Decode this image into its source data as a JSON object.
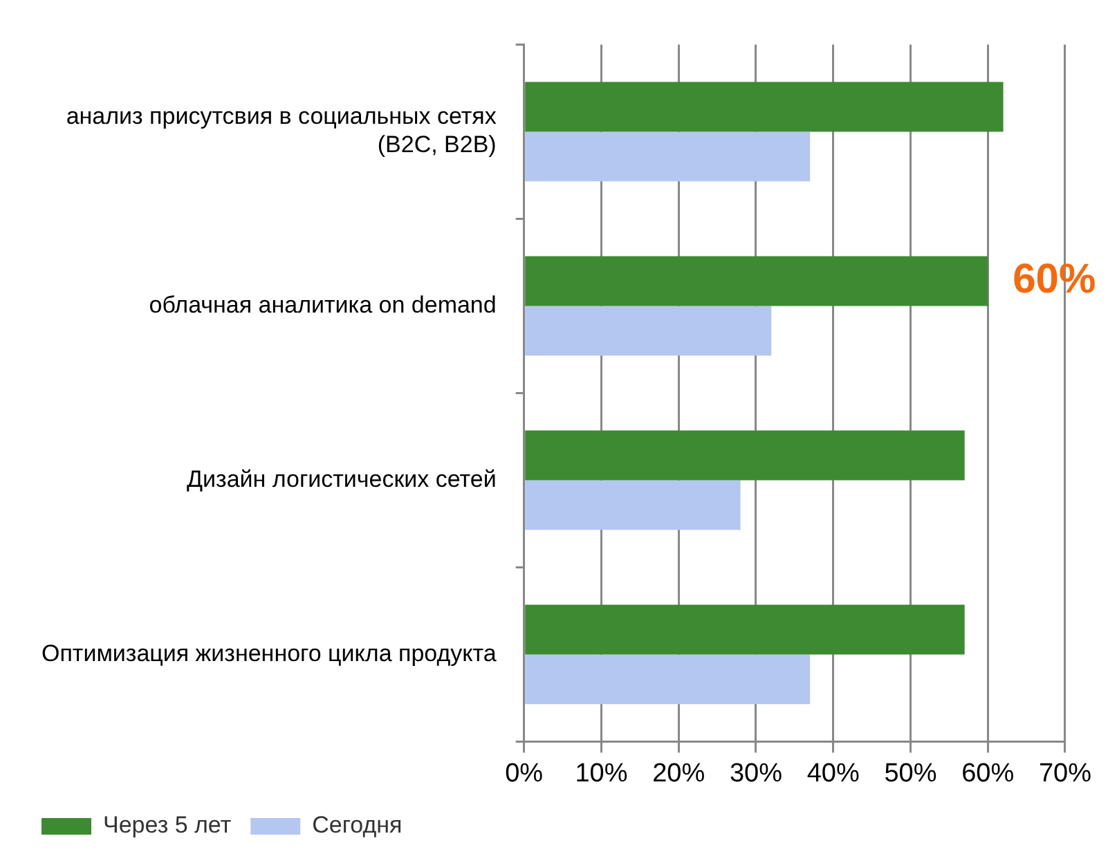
{
  "chart_data": {
    "type": "bar",
    "orientation": "horizontal",
    "categories": [
      "анализ присутсвия в социальных сетях (B2C, B2B)",
      "облачная аналитика on demand",
      "Дизайн логистических сетей",
      "Оптимизация жизненного цикла продукта"
    ],
    "series": [
      {
        "name": "Через 5 лет",
        "color": "#3d8a32",
        "values": [
          62,
          60,
          57,
          57
        ]
      },
      {
        "name": "Сегодня",
        "color": "#b4c7f0",
        "values": [
          37,
          32,
          28,
          37
        ]
      }
    ],
    "xlim": [
      0,
      70
    ],
    "xticks": [
      {
        "value": 0,
        "label": "0%"
      },
      {
        "value": 10,
        "label": "10%"
      },
      {
        "value": 20,
        "label": "20%"
      },
      {
        "value": 30,
        "label": "30%"
      },
      {
        "value": 40,
        "label": "40%"
      },
      {
        "value": 50,
        "label": "50%"
      },
      {
        "value": 60,
        "label": "60%"
      },
      {
        "value": 70,
        "label": "70%"
      }
    ],
    "grid": "x",
    "legend": "bottom left",
    "annotations": [
      {
        "text": "60%",
        "x": 60,
        "y": "облачная аналитика on demand"
      }
    ]
  }
}
